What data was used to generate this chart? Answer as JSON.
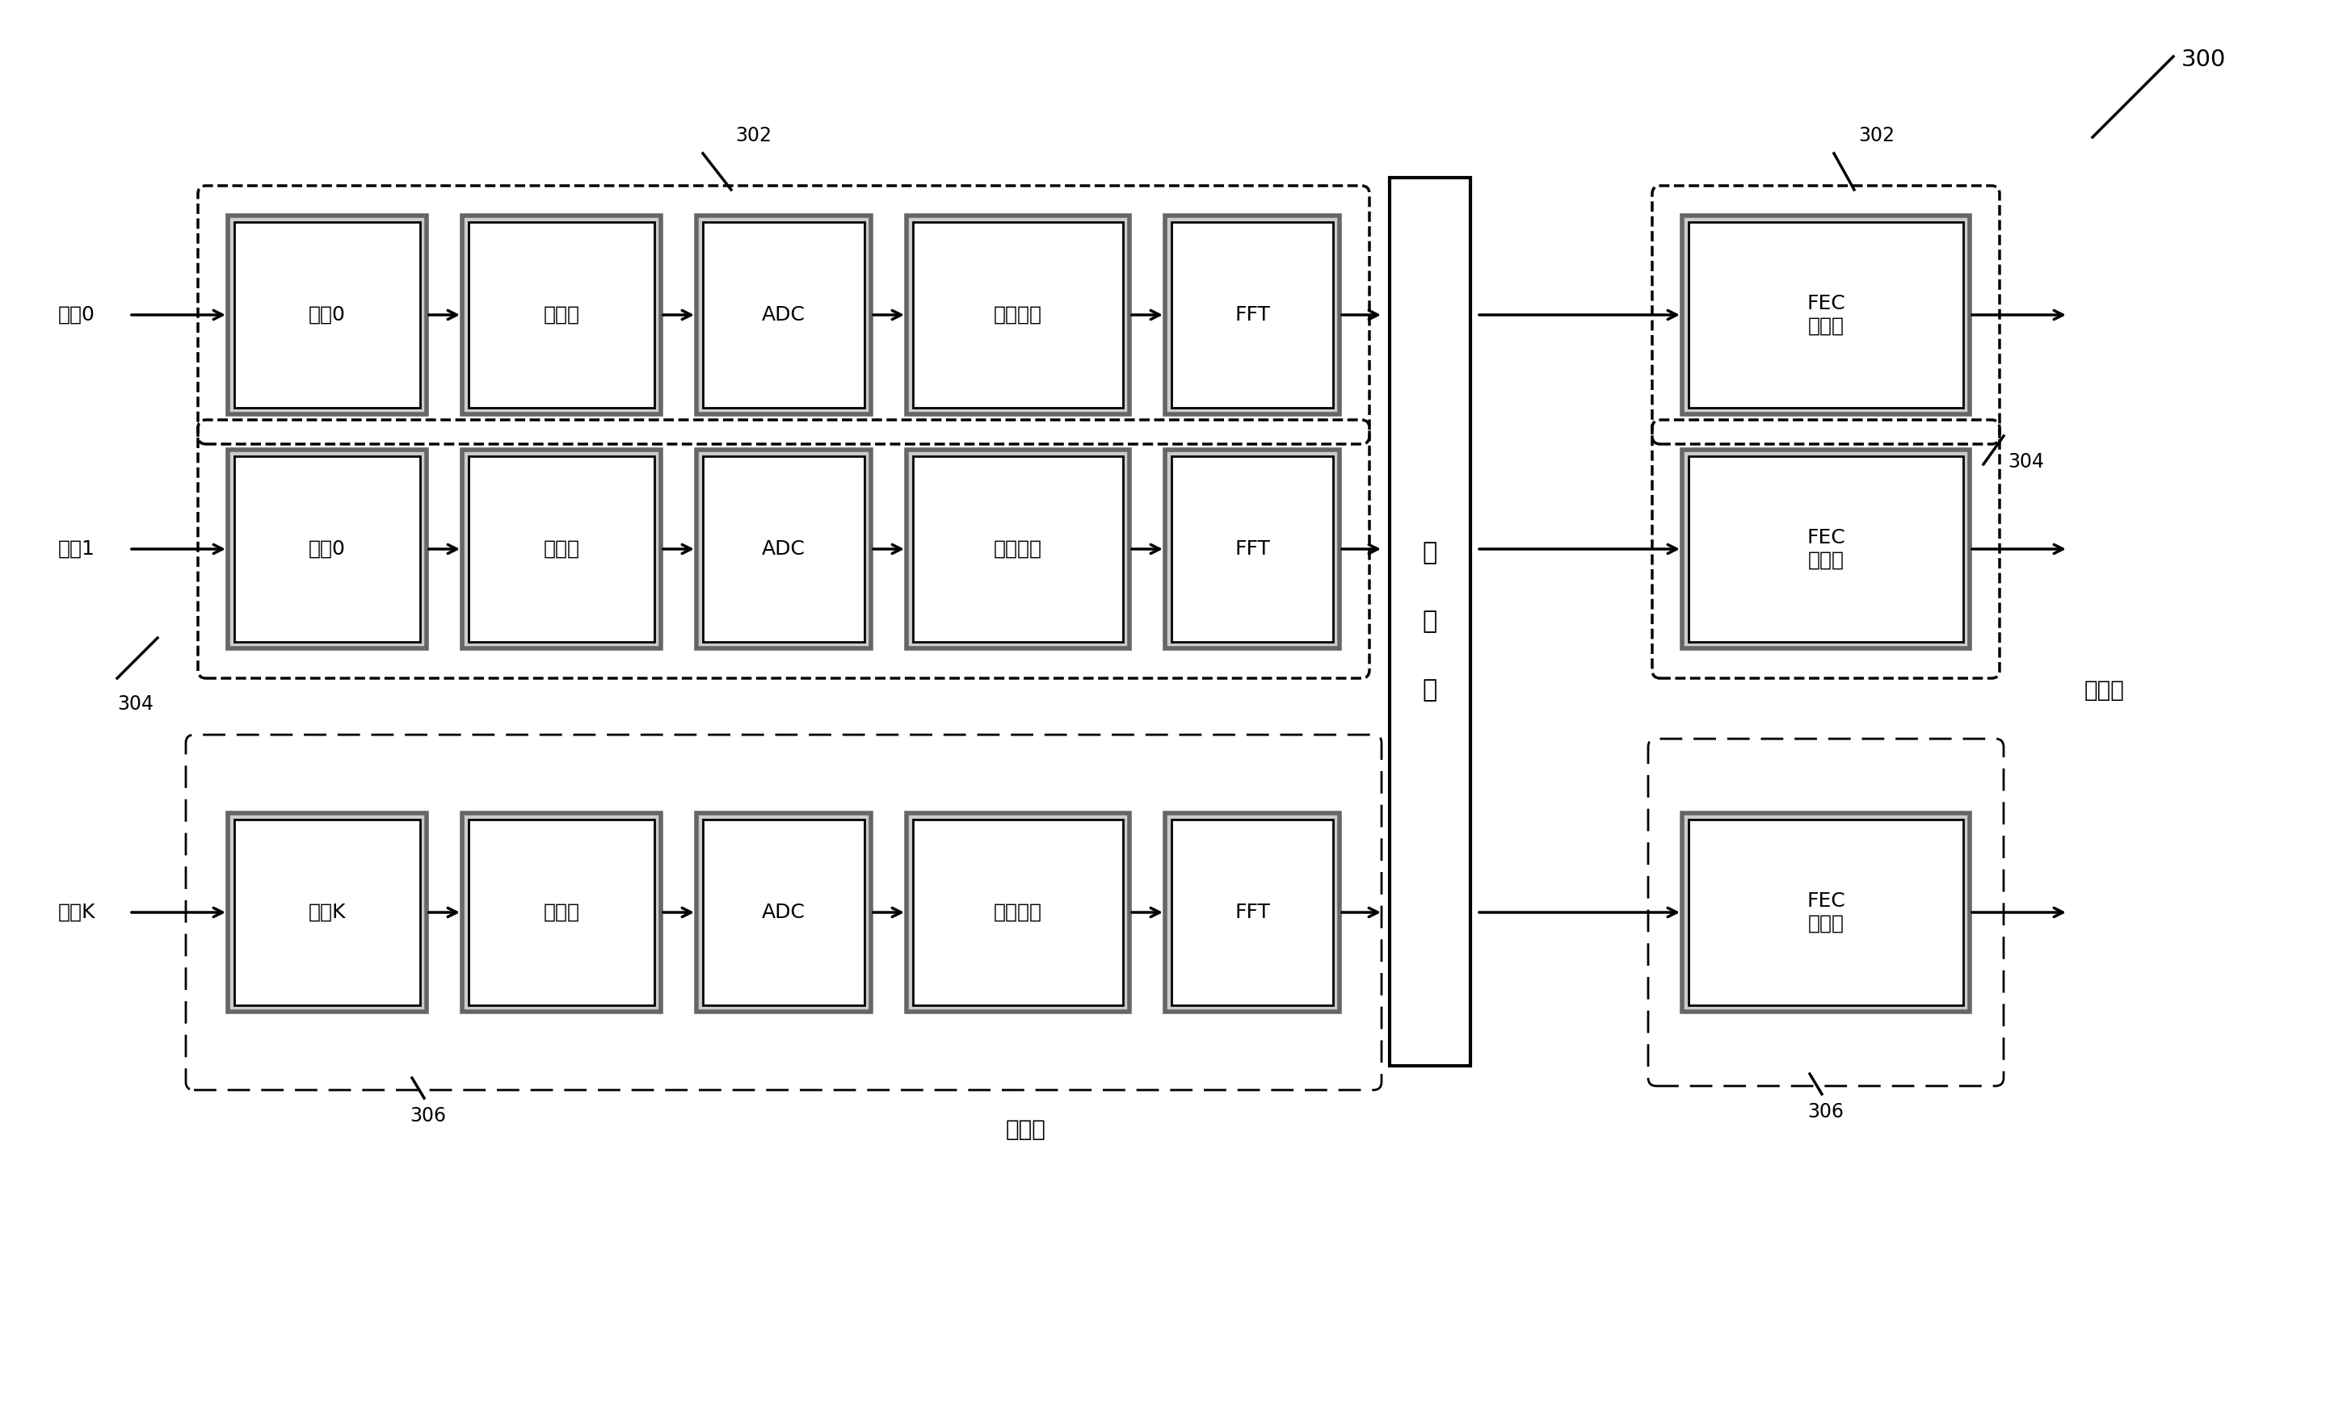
{
  "fig_width": 29.05,
  "fig_height": 17.5,
  "bg_color": "#ffffff",
  "label_300": "300",
  "row0_label": "信号0",
  "row1_label": "信号1",
  "rowK_label": "信号K",
  "blocks_row0": [
    "天线0",
    "模拟链",
    "ADC",
    "同步过程",
    "FFT"
  ],
  "blocks_row1": [
    "天线0",
    "模拟链",
    "ADC",
    "同步过程",
    "FFT"
  ],
  "blocks_rowK": [
    "天线K",
    "模拟链",
    "ADC",
    "同步过程",
    "FFT"
  ],
  "fec_label": "FEC\n解码器",
  "buffer_label_chars": [
    "缓",
    "存",
    "层"
  ],
  "label_302": "302",
  "label_304": "304",
  "label_306": "306",
  "label_guanbi": "关闭链",
  "label_gaoceng": "到高层",
  "font_size_block": 18,
  "font_size_label": 18,
  "font_size_ref": 17,
  "font_size_buf": 18
}
